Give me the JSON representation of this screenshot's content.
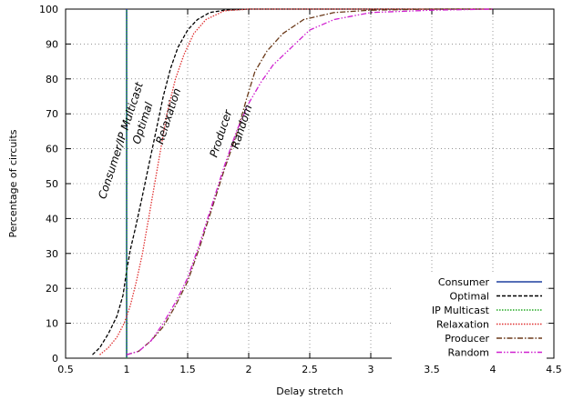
{
  "chart_data": {
    "type": "line",
    "title": "",
    "xlabel": "Delay stretch",
    "ylabel": "Percentage of circuits",
    "xlim": [
      0.5,
      4.5
    ],
    "ylim": [
      0,
      100
    ],
    "xticks": [
      0.5,
      1,
      1.5,
      2,
      2.5,
      3,
      3.5,
      4,
      4.5
    ],
    "yticks": [
      0,
      10,
      20,
      30,
      40,
      50,
      60,
      70,
      80,
      90,
      100
    ],
    "grid": true,
    "legend_position": "bottom-right",
    "series": [
      {
        "name": "Consumer",
        "color": "#1f3f9f",
        "dash": "solid",
        "points": [
          [
            1,
            0
          ],
          [
            1,
            100
          ]
        ]
      },
      {
        "name": "Optimal",
        "color": "#000000",
        "dash": "dashed",
        "points": [
          [
            0.72,
            1
          ],
          [
            0.78,
            3
          ],
          [
            0.85,
            7
          ],
          [
            0.92,
            12
          ],
          [
            0.97,
            18
          ],
          [
            1.0,
            25
          ],
          [
            1.03,
            31
          ],
          [
            1.07,
            37
          ],
          [
            1.12,
            45
          ],
          [
            1.18,
            55
          ],
          [
            1.24,
            65
          ],
          [
            1.3,
            75
          ],
          [
            1.36,
            83
          ],
          [
            1.42,
            89
          ],
          [
            1.5,
            94
          ],
          [
            1.58,
            97
          ],
          [
            1.68,
            99
          ],
          [
            1.8,
            99.7
          ],
          [
            2.0,
            100
          ],
          [
            4.0,
            100
          ]
        ]
      },
      {
        "name": "IP Multicast",
        "color": "#22aa22",
        "dash": "dotted",
        "points": [
          [
            1,
            0
          ],
          [
            1,
            100
          ]
        ]
      },
      {
        "name": "Relaxation",
        "color": "#e03030",
        "dash": "dotted",
        "points": [
          [
            0.78,
            1
          ],
          [
            0.85,
            3
          ],
          [
            0.92,
            6
          ],
          [
            0.98,
            10
          ],
          [
            1.03,
            15
          ],
          [
            1.08,
            22
          ],
          [
            1.13,
            30
          ],
          [
            1.18,
            40
          ],
          [
            1.23,
            50
          ],
          [
            1.28,
            60
          ],
          [
            1.33,
            70
          ],
          [
            1.4,
            80
          ],
          [
            1.47,
            87
          ],
          [
            1.55,
            93
          ],
          [
            1.65,
            97
          ],
          [
            1.8,
            99.5
          ],
          [
            2.0,
            100
          ],
          [
            4.0,
            100
          ]
        ]
      },
      {
        "name": "Producer",
        "color": "#6b3a1a",
        "dash": "dashdot",
        "points": [
          [
            1.0,
            1
          ],
          [
            1.1,
            2
          ],
          [
            1.2,
            5
          ],
          [
            1.3,
            9
          ],
          [
            1.4,
            15
          ],
          [
            1.5,
            22
          ],
          [
            1.6,
            32
          ],
          [
            1.7,
            43
          ],
          [
            1.8,
            54
          ],
          [
            1.9,
            64
          ],
          [
            1.98,
            74
          ],
          [
            2.05,
            82
          ],
          [
            2.15,
            88
          ],
          [
            2.28,
            93
          ],
          [
            2.45,
            97
          ],
          [
            2.7,
            99
          ],
          [
            3.0,
            99.7
          ],
          [
            3.5,
            100
          ],
          [
            4.0,
            100
          ]
        ]
      },
      {
        "name": "Random",
        "color": "#d020d0",
        "dash": "dashdotdot",
        "points": [
          [
            1.0,
            1
          ],
          [
            1.1,
            2
          ],
          [
            1.2,
            5
          ],
          [
            1.3,
            10
          ],
          [
            1.4,
            16
          ],
          [
            1.5,
            23
          ],
          [
            1.6,
            33
          ],
          [
            1.7,
            44
          ],
          [
            1.8,
            55
          ],
          [
            1.9,
            65
          ],
          [
            2.0,
            73
          ],
          [
            2.1,
            79
          ],
          [
            2.2,
            84
          ],
          [
            2.35,
            89
          ],
          [
            2.5,
            94
          ],
          [
            2.7,
            97
          ],
          [
            3.0,
            99
          ],
          [
            3.5,
            99.7
          ],
          [
            4.0,
            100
          ]
        ]
      }
    ],
    "annotations": [
      {
        "text": "Consumer/IP Multicast",
        "x": 0.98,
        "y": 62
      },
      {
        "text": "Optimal",
        "x": 1.16,
        "y": 67
      },
      {
        "text": "Relaxation",
        "x": 1.37,
        "y": 69
      },
      {
        "text": "Producer",
        "x": 1.8,
        "y": 64
      },
      {
        "text": "Random",
        "x": 1.97,
        "y": 66
      }
    ]
  }
}
